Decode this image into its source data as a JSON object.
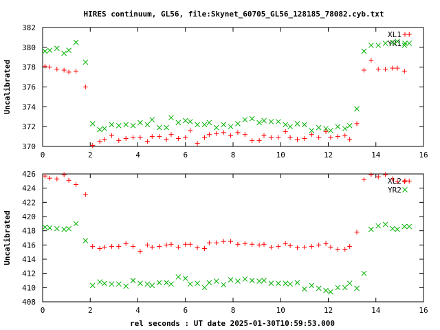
{
  "title": "HIRES continuum, GL56, file:Skynet_60705_GL56_128185_78082.cyb.txt",
  "xlabel": "rel seconds : UT date 2025-01-30T10:59:53.000",
  "colors": {
    "red": "#ff0000",
    "green": "#00b000",
    "axis": "#000000"
  },
  "chart_data": [
    {
      "type": "scatter",
      "ylabel": "Uncalibrated",
      "xlim": [
        0,
        16
      ],
      "ylim": [
        370,
        382
      ],
      "xticks": [
        "0",
        "2",
        "4",
        "6",
        "8",
        "10",
        "12",
        "14",
        "16"
      ],
      "yticks": [
        "370",
        "372",
        "374",
        "376",
        "378",
        "380",
        "382"
      ],
      "legend_position": "top-right",
      "series": [
        {
          "name": "XL1",
          "marker": "plus",
          "color": "#ff0000",
          "points": [
            [
              0.1,
              378.1
            ],
            [
              0.3,
              378.0
            ],
            [
              0.6,
              377.8
            ],
            [
              0.9,
              377.7
            ],
            [
              1.1,
              377.5
            ],
            [
              1.4,
              377.6
            ],
            [
              1.8,
              376.0
            ],
            [
              2.1,
              370.1
            ],
            [
              2.4,
              370.5
            ],
            [
              2.6,
              370.7
            ],
            [
              2.9,
              371.1
            ],
            [
              3.2,
              370.6
            ],
            [
              3.5,
              370.8
            ],
            [
              3.8,
              370.9
            ],
            [
              4.1,
              370.9
            ],
            [
              4.4,
              370.5
            ],
            [
              4.6,
              371.0
            ],
            [
              4.9,
              371.0
            ],
            [
              5.2,
              370.7
            ],
            [
              5.4,
              371.2
            ],
            [
              5.7,
              370.8
            ],
            [
              6.0,
              370.9
            ],
            [
              6.2,
              371.6
            ],
            [
              6.5,
              370.3
            ],
            [
              6.8,
              370.9
            ],
            [
              7.0,
              371.2
            ],
            [
              7.3,
              371.3
            ],
            [
              7.6,
              371.4
            ],
            [
              7.9,
              371.1
            ],
            [
              8.2,
              371.4
            ],
            [
              8.5,
              371.2
            ],
            [
              8.8,
              370.6
            ],
            [
              9.1,
              370.6
            ],
            [
              9.3,
              371.1
            ],
            [
              9.6,
              370.9
            ],
            [
              9.9,
              370.9
            ],
            [
              10.2,
              371.5
            ],
            [
              10.4,
              370.9
            ],
            [
              10.7,
              370.7
            ],
            [
              11.0,
              370.8
            ],
            [
              11.3,
              371.2
            ],
            [
              11.6,
              370.9
            ],
            [
              11.9,
              371.5
            ],
            [
              12.1,
              370.9
            ],
            [
              12.4,
              371.0
            ],
            [
              12.7,
              371.1
            ],
            [
              12.9,
              370.7
            ],
            [
              13.2,
              372.3
            ],
            [
              13.5,
              377.7
            ],
            [
              13.8,
              378.7
            ],
            [
              14.1,
              377.8
            ],
            [
              14.4,
              377.8
            ],
            [
              14.7,
              377.9
            ],
            [
              14.9,
              377.9
            ],
            [
              15.2,
              377.6
            ],
            [
              15.4,
              381.3
            ]
          ]
        },
        {
          "name": "YR1",
          "marker": "cross",
          "color": "#00b000",
          "points": [
            [
              0.1,
              379.6
            ],
            [
              0.3,
              379.7
            ],
            [
              0.6,
              379.9
            ],
            [
              0.9,
              379.4
            ],
            [
              1.1,
              379.7
            ],
            [
              1.4,
              380.5
            ],
            [
              1.8,
              378.5
            ],
            [
              2.1,
              372.3
            ],
            [
              2.4,
              371.7
            ],
            [
              2.6,
              371.8
            ],
            [
              2.9,
              372.2
            ],
            [
              3.2,
              372.1
            ],
            [
              3.5,
              372.2
            ],
            [
              3.8,
              372.1
            ],
            [
              4.1,
              372.4
            ],
            [
              4.4,
              372.2
            ],
            [
              4.6,
              372.7
            ],
            [
              4.9,
              371.9
            ],
            [
              5.2,
              371.9
            ],
            [
              5.4,
              372.9
            ],
            [
              5.7,
              372.4
            ],
            [
              6.0,
              372.6
            ],
            [
              6.2,
              372.5
            ],
            [
              6.5,
              372.2
            ],
            [
              6.8,
              372.2
            ],
            [
              7.0,
              372.4
            ],
            [
              7.3,
              371.9
            ],
            [
              7.6,
              372.2
            ],
            [
              7.9,
              372.0
            ],
            [
              8.2,
              372.3
            ],
            [
              8.5,
              372.7
            ],
            [
              8.8,
              372.8
            ],
            [
              9.1,
              372.4
            ],
            [
              9.3,
              372.6
            ],
            [
              9.6,
              372.5
            ],
            [
              9.9,
              372.5
            ],
            [
              10.2,
              372.2
            ],
            [
              10.4,
              372.0
            ],
            [
              10.7,
              372.3
            ],
            [
              11.0,
              372.2
            ],
            [
              11.3,
              371.6
            ],
            [
              11.6,
              371.9
            ],
            [
              11.9,
              371.8
            ],
            [
              12.1,
              371.6
            ],
            [
              12.4,
              372.0
            ],
            [
              12.7,
              371.8
            ],
            [
              12.9,
              372.1
            ],
            [
              13.2,
              373.8
            ],
            [
              13.5,
              379.6
            ],
            [
              13.8,
              380.2
            ],
            [
              14.1,
              380.2
            ],
            [
              14.4,
              380.4
            ],
            [
              14.7,
              380.5
            ],
            [
              14.9,
              380.6
            ],
            [
              15.2,
              380.2
            ],
            [
              15.4,
              380.4
            ]
          ]
        }
      ]
    },
    {
      "type": "scatter",
      "ylabel": "Uncalibrated",
      "xlim": [
        0,
        16
      ],
      "ylim": [
        408,
        426
      ],
      "xticks": [
        "0",
        "2",
        "4",
        "6",
        "8",
        "10",
        "12",
        "14",
        "16"
      ],
      "yticks": [
        "408",
        "410",
        "412",
        "414",
        "416",
        "418",
        "420",
        "422",
        "424",
        "426"
      ],
      "legend_position": "top-right",
      "series": [
        {
          "name": "XL2",
          "marker": "plus",
          "color": "#ff0000",
          "points": [
            [
              0.1,
              425.7
            ],
            [
              0.3,
              425.4
            ],
            [
              0.6,
              425.3
            ],
            [
              0.9,
              425.9
            ],
            [
              1.1,
              425.1
            ],
            [
              1.4,
              424.5
            ],
            [
              1.8,
              423.1
            ],
            [
              2.1,
              415.8
            ],
            [
              2.4,
              415.5
            ],
            [
              2.6,
              415.7
            ],
            [
              2.9,
              415.8
            ],
            [
              3.2,
              415.8
            ],
            [
              3.5,
              416.2
            ],
            [
              3.8,
              415.8
            ],
            [
              4.1,
              415.1
            ],
            [
              4.4,
              416.0
            ],
            [
              4.6,
              415.7
            ],
            [
              4.9,
              415.8
            ],
            [
              5.2,
              416.0
            ],
            [
              5.4,
              416.1
            ],
            [
              5.7,
              415.7
            ],
            [
              6.0,
              416.1
            ],
            [
              6.2,
              416.1
            ],
            [
              6.5,
              415.6
            ],
            [
              6.8,
              415.5
            ],
            [
              7.0,
              416.3
            ],
            [
              7.3,
              416.3
            ],
            [
              7.6,
              416.5
            ],
            [
              7.9,
              416.5
            ],
            [
              8.2,
              416.1
            ],
            [
              8.5,
              416.2
            ],
            [
              8.8,
              416.1
            ],
            [
              9.1,
              416.0
            ],
            [
              9.3,
              416.1
            ],
            [
              9.6,
              415.7
            ],
            [
              9.9,
              415.8
            ],
            [
              10.2,
              416.2
            ],
            [
              10.4,
              415.9
            ],
            [
              10.7,
              415.6
            ],
            [
              11.0,
              415.7
            ],
            [
              11.3,
              415.8
            ],
            [
              11.6,
              416.0
            ],
            [
              11.9,
              416.2
            ],
            [
              12.1,
              415.7
            ],
            [
              12.4,
              415.4
            ],
            [
              12.7,
              415.4
            ],
            [
              12.9,
              415.8
            ],
            [
              13.2,
              417.8
            ],
            [
              13.5,
              425.2
            ],
            [
              13.8,
              425.9
            ],
            [
              14.1,
              425.6
            ],
            [
              14.4,
              425.9
            ],
            [
              14.7,
              425.3
            ],
            [
              14.9,
              424.9
            ],
            [
              15.2,
              424.9
            ],
            [
              15.4,
              425.0
            ]
          ]
        },
        {
          "name": "YR2",
          "marker": "cross",
          "color": "#00b000",
          "points": [
            [
              0.1,
              418.5
            ],
            [
              0.3,
              418.4
            ],
            [
              0.6,
              418.3
            ],
            [
              0.9,
              418.2
            ],
            [
              1.1,
              418.3
            ],
            [
              1.4,
              419.0
            ],
            [
              1.8,
              416.6
            ],
            [
              2.1,
              410.3
            ],
            [
              2.4,
              410.8
            ],
            [
              2.6,
              410.6
            ],
            [
              2.9,
              410.5
            ],
            [
              3.2,
              410.5
            ],
            [
              3.5,
              410.2
            ],
            [
              3.8,
              411.0
            ],
            [
              4.1,
              410.6
            ],
            [
              4.4,
              410.5
            ],
            [
              4.6,
              410.3
            ],
            [
              4.9,
              410.7
            ],
            [
              5.2,
              410.7
            ],
            [
              5.4,
              410.5
            ],
            [
              5.7,
              411.5
            ],
            [
              6.0,
              411.3
            ],
            [
              6.2,
              410.5
            ],
            [
              6.5,
              410.6
            ],
            [
              6.8,
              410.0
            ],
            [
              7.0,
              410.7
            ],
            [
              7.3,
              410.9
            ],
            [
              7.6,
              410.4
            ],
            [
              7.9,
              411.1
            ],
            [
              8.2,
              410.9
            ],
            [
              8.5,
              411.2
            ],
            [
              8.8,
              411.0
            ],
            [
              9.1,
              410.9
            ],
            [
              9.3,
              411.0
            ],
            [
              9.6,
              410.6
            ],
            [
              9.9,
              410.6
            ],
            [
              10.2,
              410.6
            ],
            [
              10.4,
              410.5
            ],
            [
              10.7,
              410.7
            ],
            [
              11.0,
              409.8
            ],
            [
              11.3,
              410.3
            ],
            [
              11.6,
              409.9
            ],
            [
              11.9,
              409.6
            ],
            [
              12.1,
              409.4
            ],
            [
              12.4,
              410.0
            ],
            [
              12.7,
              410.0
            ],
            [
              12.9,
              410.6
            ],
            [
              13.2,
              409.9
            ],
            [
              13.5,
              412.0
            ],
            [
              13.8,
              418.2
            ],
            [
              14.1,
              418.7
            ],
            [
              14.4,
              418.9
            ],
            [
              14.7,
              418.3
            ],
            [
              14.9,
              418.2
            ],
            [
              15.2,
              418.6
            ],
            [
              15.4,
              418.6
            ]
          ]
        }
      ]
    }
  ]
}
